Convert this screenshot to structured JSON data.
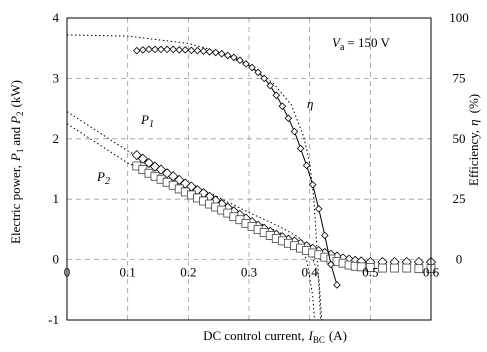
{
  "chart_data": {
    "type": "scatter",
    "xlabel": "DC control current,",
    "xlabel_symbol": "I",
    "xlabel_subscript": "BC",
    "xlabel_unit": "(A)",
    "ylabel_left_prefix": "Electric power,",
    "ylabel_left_p1": "P",
    "ylabel_left_p1_sub": "1",
    "ylabel_left_and": "and",
    "ylabel_left_p2": "P",
    "ylabel_left_p2_sub": "2",
    "ylabel_left_unit": "(kW)",
    "ylabel_right_prefix": "Efficiency,",
    "ylabel_right_symbol": "η",
    "ylabel_right_unit": "(%)",
    "xlim": [
      0,
      0.6
    ],
    "ylim_left": [
      -1,
      4
    ],
    "ylim_right": [
      -25,
      100
    ],
    "x_ticks": [
      "0",
      "0.1",
      "0.2",
      "0.3",
      "0.4",
      "0.5",
      "0.6"
    ],
    "y_ticks_left": [
      "-1",
      "0",
      "1",
      "2",
      "3",
      "4"
    ],
    "y_ticks_right": [
      "0",
      "25",
      "50",
      "75",
      "100"
    ],
    "grid": true,
    "annotations": {
      "voltage_symbol": "V",
      "voltage_sub": "a",
      "voltage_value": "= 150 V",
      "p1_symbol": "P",
      "p1_sub": "1",
      "p2_symbol": "P",
      "p2_sub": "2",
      "eta_symbol": "η"
    },
    "series": [
      {
        "name": "P1",
        "marker": "diamond",
        "axis": "left",
        "points": [
          [
            0.115,
            1.73
          ],
          [
            0.125,
            1.67
          ],
          [
            0.135,
            1.6
          ],
          [
            0.145,
            1.54
          ],
          [
            0.155,
            1.49
          ],
          [
            0.165,
            1.43
          ],
          [
            0.175,
            1.38
          ],
          [
            0.185,
            1.32
          ],
          [
            0.195,
            1.26
          ],
          [
            0.205,
            1.21
          ],
          [
            0.215,
            1.15
          ],
          [
            0.225,
            1.1
          ],
          [
            0.235,
            1.04
          ],
          [
            0.245,
            0.98
          ],
          [
            0.255,
            0.92
          ],
          [
            0.265,
            0.86
          ],
          [
            0.275,
            0.8
          ],
          [
            0.285,
            0.74
          ],
          [
            0.295,
            0.68
          ],
          [
            0.305,
            0.62
          ],
          [
            0.315,
            0.56
          ],
          [
            0.325,
            0.51
          ],
          [
            0.335,
            0.46
          ],
          [
            0.345,
            0.41
          ],
          [
            0.355,
            0.37
          ],
          [
            0.365,
            0.33
          ],
          [
            0.375,
            0.3
          ],
          [
            0.385,
            0.26
          ],
          [
            0.395,
            0.22
          ],
          [
            0.405,
            0.18
          ],
          [
            0.415,
            0.14
          ],
          [
            0.425,
            0.11
          ],
          [
            0.435,
            0.08
          ],
          [
            0.445,
            0.05
          ],
          [
            0.455,
            0.02
          ],
          [
            0.465,
            0.0
          ],
          [
            0.475,
            -0.02
          ],
          [
            0.485,
            -0.03
          ],
          [
            0.5,
            -0.04
          ],
          [
            0.52,
            -0.04
          ],
          [
            0.54,
            -0.04
          ],
          [
            0.56,
            -0.04
          ],
          [
            0.58,
            -0.04
          ],
          [
            0.6,
            -0.04
          ]
        ]
      },
      {
        "name": "P2",
        "marker": "square",
        "axis": "left",
        "points": [
          [
            0.115,
            1.55
          ],
          [
            0.125,
            1.49
          ],
          [
            0.135,
            1.43
          ],
          [
            0.145,
            1.38
          ],
          [
            0.155,
            1.33
          ],
          [
            0.165,
            1.28
          ],
          [
            0.175,
            1.23
          ],
          [
            0.185,
            1.17
          ],
          [
            0.195,
            1.12
          ],
          [
            0.205,
            1.07
          ],
          [
            0.215,
            1.02
          ],
          [
            0.225,
            0.97
          ],
          [
            0.235,
            0.92
          ],
          [
            0.245,
            0.87
          ],
          [
            0.255,
            0.82
          ],
          [
            0.265,
            0.77
          ],
          [
            0.275,
            0.71
          ],
          [
            0.285,
            0.66
          ],
          [
            0.295,
            0.6
          ],
          [
            0.305,
            0.55
          ],
          [
            0.315,
            0.5
          ],
          [
            0.325,
            0.45
          ],
          [
            0.335,
            0.4
          ],
          [
            0.345,
            0.35
          ],
          [
            0.355,
            0.31
          ],
          [
            0.365,
            0.27
          ],
          [
            0.375,
            0.23
          ],
          [
            0.385,
            0.19
          ],
          [
            0.395,
            0.15
          ],
          [
            0.405,
            0.11
          ],
          [
            0.415,
            0.08
          ],
          [
            0.425,
            0.04
          ],
          [
            0.435,
            0.01
          ],
          [
            0.445,
            -0.03
          ],
          [
            0.455,
            -0.06
          ],
          [
            0.465,
            -0.09
          ],
          [
            0.475,
            -0.11
          ],
          [
            0.485,
            -0.12
          ],
          [
            0.5,
            -0.13
          ],
          [
            0.52,
            -0.14
          ],
          [
            0.54,
            -0.14
          ],
          [
            0.56,
            -0.14
          ],
          [
            0.58,
            -0.15
          ],
          [
            0.6,
            -0.15
          ]
        ]
      },
      {
        "name": "η",
        "marker": "diamond",
        "axis": "right",
        "connected": true,
        "points": [
          [
            0.115,
            86.5
          ],
          [
            0.125,
            86.8
          ],
          [
            0.135,
            87.0
          ],
          [
            0.145,
            87.0
          ],
          [
            0.155,
            87.0
          ],
          [
            0.165,
            87.0
          ],
          [
            0.175,
            87.0
          ],
          [
            0.185,
            86.8
          ],
          [
            0.195,
            86.8
          ],
          [
            0.205,
            86.6
          ],
          [
            0.215,
            86.5
          ],
          [
            0.225,
            86.3
          ],
          [
            0.235,
            86.0
          ],
          [
            0.245,
            85.7
          ],
          [
            0.255,
            85.2
          ],
          [
            0.265,
            84.5
          ],
          [
            0.275,
            83.7
          ],
          [
            0.285,
            82.5
          ],
          [
            0.295,
            81.0
          ],
          [
            0.305,
            79.5
          ],
          [
            0.315,
            77.5
          ],
          [
            0.325,
            75.0
          ],
          [
            0.335,
            72.0
          ],
          [
            0.345,
            68.0
          ],
          [
            0.355,
            63.5
          ],
          [
            0.365,
            58.5
          ],
          [
            0.375,
            53.0
          ],
          [
            0.385,
            46.0
          ],
          [
            0.395,
            39.0
          ],
          [
            0.405,
            31.0
          ],
          [
            0.415,
            21.0
          ],
          [
            0.425,
            10.0
          ],
          [
            0.435,
            -2.0
          ],
          [
            0.445,
            -10.5
          ]
        ]
      }
    ],
    "fitted_lines": [
      {
        "name": "P1-fit",
        "axis": "left",
        "points": [
          [
            0.0,
            2.45
          ],
          [
            0.1,
            1.8
          ],
          [
            0.2,
            1.28
          ],
          [
            0.3,
            0.78
          ],
          [
            0.35,
            0.55
          ],
          [
            0.38,
            0.38
          ],
          [
            0.4,
            0.2
          ],
          [
            0.415,
            -0.3
          ],
          [
            0.42,
            -1.0
          ]
        ]
      },
      {
        "name": "P2-fit",
        "axis": "left",
        "points": [
          [
            0.0,
            2.25
          ],
          [
            0.1,
            1.6
          ],
          [
            0.2,
            1.15
          ],
          [
            0.3,
            0.68
          ],
          [
            0.35,
            0.45
          ],
          [
            0.38,
            0.28
          ],
          [
            0.395,
            0.0
          ],
          [
            0.405,
            -0.6
          ],
          [
            0.408,
            -1.0
          ]
        ]
      },
      {
        "name": "eta-fit",
        "axis": "right",
        "points": [
          [
            0.0,
            93.0
          ],
          [
            0.1,
            92.5
          ],
          [
            0.2,
            89.5
          ],
          [
            0.25,
            86.0
          ],
          [
            0.3,
            80.0
          ],
          [
            0.34,
            73.0
          ],
          [
            0.37,
            64.0
          ],
          [
            0.39,
            51.0
          ],
          [
            0.4,
            40.0
          ],
          [
            0.407,
            25.0
          ],
          [
            0.412,
            5.0
          ],
          [
            0.415,
            -10.0
          ],
          [
            0.418,
            -25.0
          ]
        ]
      }
    ]
  }
}
